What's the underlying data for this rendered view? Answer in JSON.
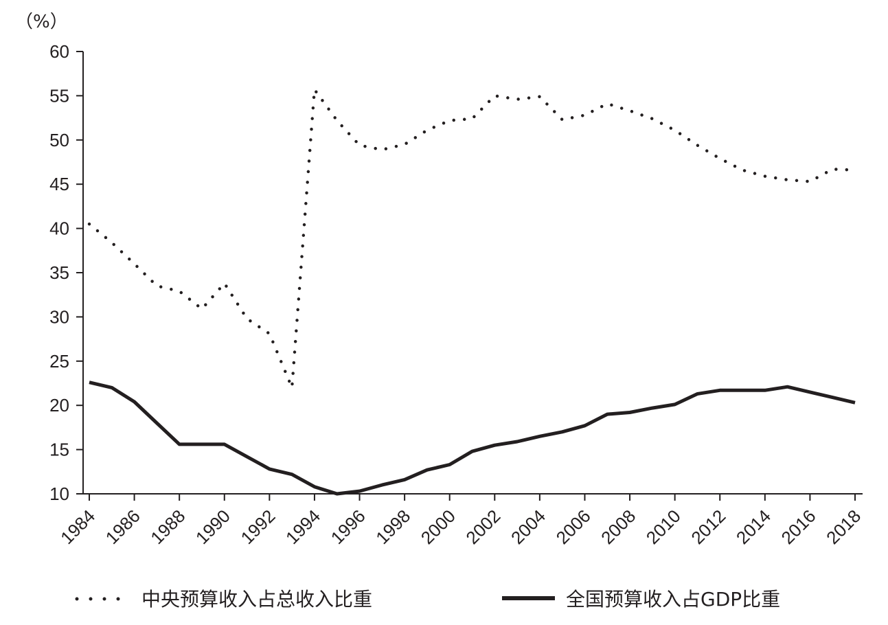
{
  "chart_data": {
    "type": "line",
    "unit_label": "（%）",
    "ylim": [
      10,
      60
    ],
    "y_ticks": [
      "10",
      "15",
      "20",
      "25",
      "30",
      "35",
      "40",
      "45",
      "50",
      "55",
      "60"
    ],
    "x_tick_labels": [
      "1984",
      "1986",
      "1988",
      "1990",
      "1992",
      "1994",
      "1996",
      "1998",
      "2000",
      "2002",
      "2004",
      "2006",
      "2008",
      "2010",
      "2012",
      "2014",
      "2016",
      "2018"
    ],
    "x": [
      1984,
      1985,
      1986,
      1987,
      1988,
      1989,
      1990,
      1991,
      1992,
      1993,
      1994,
      1995,
      1996,
      1997,
      1998,
      1999,
      2000,
      2001,
      2002,
      2003,
      2004,
      2005,
      2006,
      2007,
      2008,
      2009,
      2010,
      2011,
      2012,
      2013,
      2014,
      2015,
      2016,
      2017,
      2018
    ],
    "series": [
      {
        "name": "中央预算收入占总收入比重",
        "style": "dotted",
        "color": "#231f20",
        "values": [
          40.5,
          38.4,
          36.0,
          33.5,
          32.9,
          30.9,
          33.8,
          29.8,
          28.1,
          22.0,
          55.7,
          52.2,
          49.4,
          48.9,
          49.5,
          51.1,
          52.2,
          52.4,
          55.0,
          54.6,
          54.9,
          52.3,
          52.8,
          54.1,
          53.3,
          52.4,
          51.1,
          49.4,
          47.9,
          46.6,
          45.9,
          45.5,
          45.3,
          46.7,
          46.6
        ]
      },
      {
        "name": "全国预算收入占GDP比重",
        "style": "solid",
        "color": "#231f20",
        "values": [
          22.6,
          22.0,
          20.4,
          18.0,
          15.6,
          15.6,
          15.6,
          14.2,
          12.8,
          12.2,
          10.8,
          10.0,
          10.3,
          11.0,
          11.6,
          12.7,
          13.3,
          14.8,
          15.5,
          15.9,
          16.5,
          17.0,
          17.7,
          19.0,
          19.2,
          19.7,
          20.1,
          21.3,
          21.7,
          21.7,
          21.7,
          22.1,
          21.5,
          20.9,
          20.3
        ]
      }
    ],
    "legend_position": "bottom"
  }
}
